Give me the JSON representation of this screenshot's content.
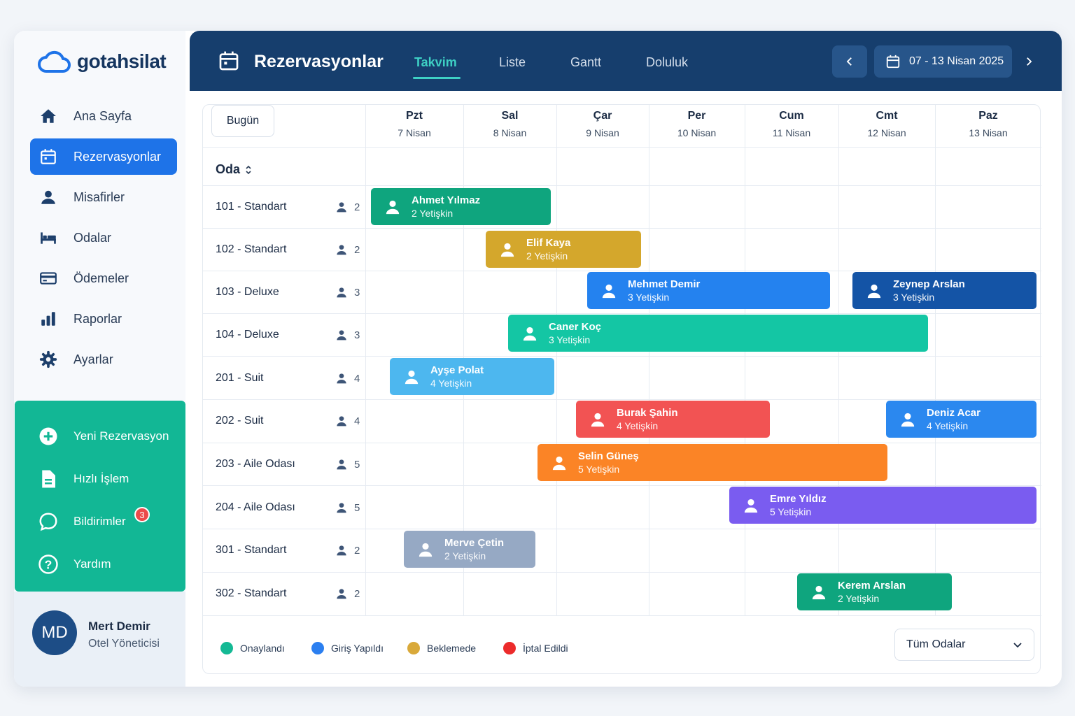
{
  "brand": {
    "name": "gotahsilat"
  },
  "sidebar": {
    "items": [
      {
        "label": "Ana Sayfa",
        "icon": "home-icon"
      },
      {
        "label": "Rezervasyonlar",
        "icon": "calendar-icon",
        "active": true
      },
      {
        "label": "Misafirler",
        "icon": "user-icon"
      },
      {
        "label": "Odalar",
        "icon": "bed-icon"
      },
      {
        "label": "Ödemeler",
        "icon": "credit-card-icon"
      },
      {
        "label": "Raporlar",
        "icon": "bar-chart-icon"
      },
      {
        "label": "Ayarlar",
        "icon": "gear-icon"
      }
    ],
    "quick": [
      {
        "label": "Yeni Rezervasyon",
        "icon": "plus-circle-icon"
      },
      {
        "label": "Hızlı İşlem",
        "icon": "document-icon"
      },
      {
        "label": "Bildirimler",
        "icon": "chat-bubble-icon",
        "badge": "3"
      },
      {
        "label": "Yardım",
        "icon": "help-circle-icon"
      }
    ],
    "user": {
      "initials": "MD",
      "name": "Mert Demir",
      "role": "Otel Yöneticisi"
    }
  },
  "header": {
    "title": "Rezervasyonlar",
    "tabs": [
      {
        "label": "Takvim",
        "active": true
      },
      {
        "label": "Liste"
      },
      {
        "label": "Gantt"
      },
      {
        "label": "Doluluk"
      }
    ],
    "date_range": "07 - 13 Nisan 2025"
  },
  "calendar": {
    "today_label": "Bugün",
    "room_header": "Oda",
    "days": [
      {
        "name": "Pzt",
        "date": "7 Nisan"
      },
      {
        "name": "Sal",
        "date": "8 Nisan"
      },
      {
        "name": "Çar",
        "date": "9 Nisan"
      },
      {
        "name": "Per",
        "date": "10 Nisan"
      },
      {
        "name": "Cum",
        "date": "11 Nisan"
      },
      {
        "name": "Cmt",
        "date": "12 Nisan"
      },
      {
        "name": "Paz",
        "date": "13 Nisan"
      }
    ],
    "rooms": [
      {
        "name": "101 - Standart",
        "capacity": "2"
      },
      {
        "name": "102 - Standart",
        "capacity": "2"
      },
      {
        "name": "103 - Deluxe",
        "capacity": "3"
      },
      {
        "name": "104 - Deluxe",
        "capacity": "3"
      },
      {
        "name": "201 - Suit",
        "capacity": "4"
      },
      {
        "name": "202 - Suit",
        "capacity": "4"
      },
      {
        "name": "203 - Aile Odası",
        "capacity": "5"
      },
      {
        "name": "204 - Aile Odası",
        "capacity": "5"
      },
      {
        "name": "301 - Standart",
        "capacity": "2"
      },
      {
        "name": "302 - Standart",
        "capacity": "2"
      }
    ],
    "bookings": [
      {
        "guest": "Ahmet Yılmaz",
        "guests": "2 Yetişkin",
        "color": "#0fa57e"
      },
      {
        "guest": "Elif Kaya",
        "guests": "2 Yetişkin",
        "color": "#d4a72c"
      },
      {
        "guest": "Mehmet Demir",
        "guests": "3 Yetişkin",
        "color": "#2482ef"
      },
      {
        "guest": "Zeynep Arslan",
        "guests": "3 Yetişkin",
        "color": "#1454a6"
      },
      {
        "guest": "Caner Koç",
        "guests": "3 Yetişkin",
        "color": "#14c6a4"
      },
      {
        "guest": "Ayşe Polat",
        "guests": "4 Yetişkin",
        "color": "#4db7ef"
      },
      {
        "guest": "Burak Şahin",
        "guests": "4 Yetişkin",
        "color": "#f25353"
      },
      {
        "guest": "Deniz Acar",
        "guests": "4 Yetişkin",
        "color": "#2b88ef"
      },
      {
        "guest": "Selin Güneş",
        "guests": "5 Yetişkin",
        "color": "#fb8426"
      },
      {
        "guest": "Emre Yıldız",
        "guests": "5 Yetişkin",
        "color": "#7a5cf0"
      },
      {
        "guest": "Merve Çetin",
        "guests": "2 Yetişkin",
        "color": "#96a9c4"
      },
      {
        "guest": "Kerem Arslan",
        "guests": "2 Yetişkin",
        "color": "#0fa57e"
      }
    ],
    "legend": [
      {
        "label": "Onaylandı",
        "color": "#14b994"
      },
      {
        "label": "Giriş Yapıldı",
        "color": "#2b7ff0"
      },
      {
        "label": "Beklemede",
        "color": "#d9a93a"
      },
      {
        "label": "İptal Edildi",
        "color": "#ec2b2b"
      }
    ],
    "filter": {
      "selected": "Tüm Odalar"
    }
  }
}
